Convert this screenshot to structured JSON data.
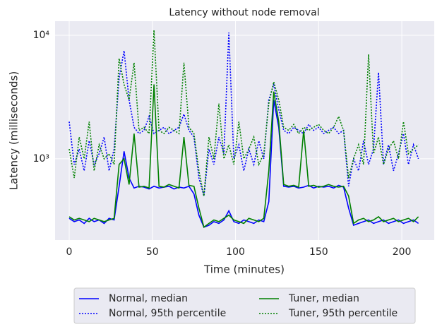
{
  "chart_data": {
    "type": "line",
    "title": "Latency without node removal",
    "x_label": "Time (minutes)",
    "y_label": "Latency (milliseconds)",
    "xlim": [
      -8.5,
      219.5
    ],
    "xticks": [
      0,
      50,
      100,
      150,
      200
    ],
    "ylim": [
      220,
      13000
    ],
    "log_y": true,
    "yticks": [
      {
        "value": 1000,
        "label": "10³"
      },
      {
        "value": 10000,
        "label": "10⁴"
      }
    ],
    "grid": true,
    "legend": "below",
    "x": [
      0,
      3,
      6,
      9,
      12,
      15,
      18,
      21,
      24,
      27,
      30,
      33,
      36,
      39,
      42,
      45,
      48,
      51,
      54,
      57,
      60,
      63,
      66,
      69,
      72,
      75,
      78,
      81,
      84,
      87,
      90,
      93,
      96,
      99,
      102,
      105,
      108,
      111,
      114,
      117,
      120,
      123,
      126,
      129,
      132,
      135,
      138,
      141,
      144,
      147,
      150,
      153,
      156,
      159,
      162,
      165,
      168,
      171,
      174,
      177,
      180,
      183,
      186,
      189,
      192,
      195,
      198,
      201,
      204,
      207,
      210
    ],
    "series": [
      {
        "name": "Normal, median",
        "color": "#0000ff",
        "style": "solid",
        "values": [
          330,
          310,
          320,
          300,
          330,
          310,
          320,
          300,
          330,
          320,
          600,
          1150,
          700,
          580,
          600,
          590,
          570,
          600,
          580,
          590,
          600,
          570,
          590,
          580,
          600,
          520,
          350,
          280,
          290,
          310,
          300,
          320,
          380,
          310,
          300,
          320,
          310,
          300,
          320,
          310,
          450,
          3000,
          1800,
          600,
          590,
          600,
          580,
          590,
          610,
          580,
          600,
          590,
          600,
          580,
          610,
          590,
          400,
          290,
          300,
          310,
          320,
          300,
          310,
          320,
          300,
          310,
          320,
          300,
          310,
          320,
          300
        ]
      },
      {
        "name": "Normal, 95th percentile",
        "color": "#0000ff",
        "style": "dotted",
        "values": [
          2000,
          900,
          1200,
          800,
          1400,
          900,
          1100,
          1500,
          800,
          1200,
          4500,
          7500,
          3000,
          1800,
          1600,
          1700,
          2200,
          1600,
          1700,
          1800,
          1600,
          1700,
          1800,
          2300,
          1700,
          1500,
          700,
          500,
          1200,
          900,
          1500,
          1100,
          10500,
          1000,
          1300,
          800,
          1200,
          900,
          1400,
          1000,
          3000,
          4000,
          2500,
          1700,
          1600,
          1800,
          1700,
          1600,
          1900,
          1700,
          1800,
          1600,
          1700,
          1800,
          1600,
          1700,
          600,
          1000,
          800,
          1400,
          900,
          1200,
          5000,
          900,
          1300,
          800,
          1100,
          1600,
          900,
          1300,
          1000
        ]
      },
      {
        "name": "Tuner, median",
        "color": "#008000",
        "style": "solid",
        "values": [
          340,
          320,
          330,
          320,
          310,
          330,
          320,
          310,
          320,
          330,
          900,
          1000,
          620,
          1600,
          590,
          600,
          580,
          4000,
          600,
          590,
          620,
          600,
          580,
          1500,
          610,
          600,
          400,
          280,
          300,
          320,
          310,
          330,
          350,
          320,
          310,
          300,
          330,
          320,
          310,
          330,
          800,
          3500,
          2000,
          620,
          600,
          610,
          590,
          1700,
          600,
          610,
          590,
          600,
          620,
          600,
          590,
          600,
          500,
          300,
          320,
          330,
          310,
          320,
          340,
          310,
          320,
          330,
          310,
          320,
          330,
          310,
          340
        ]
      },
      {
        "name": "Tuner, 95th percentile",
        "color": "#008000",
        "style": "dotted",
        "values": [
          1200,
          700,
          1500,
          1000,
          2000,
          800,
          1300,
          1000,
          1100,
          900,
          6500,
          4000,
          3000,
          6000,
          1700,
          1800,
          1600,
          11000,
          1700,
          1600,
          1800,
          1700,
          1600,
          6000,
          1800,
          1600,
          800,
          500,
          1500,
          1000,
          2800,
          1000,
          1300,
          900,
          2000,
          1000,
          1200,
          1500,
          900,
          1100,
          2800,
          4200,
          3000,
          1800,
          1700,
          1900,
          1600,
          1800,
          1700,
          1800,
          1900,
          1700,
          1600,
          1800,
          2200,
          1700,
          700,
          1000,
          1300,
          900,
          7000,
          1100,
          1500,
          900,
          1200,
          1400,
          1000,
          2000,
          1100,
          1200,
          1300
        ]
      }
    ]
  }
}
